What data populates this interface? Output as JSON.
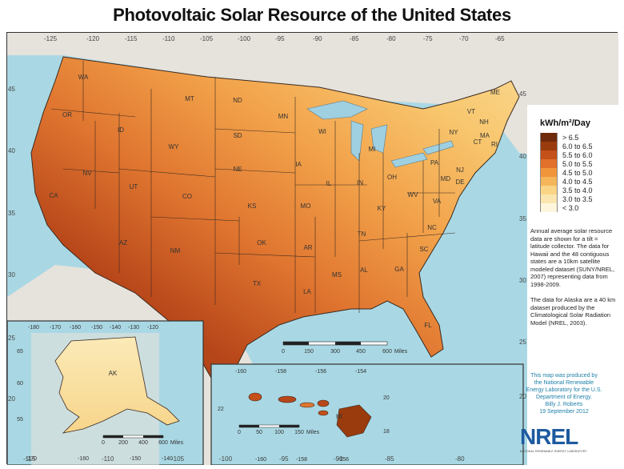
{
  "title": "Photovoltaic Solar Resource of the United States",
  "top_longitude_ticks": [
    "-125",
    "-120",
    "-115",
    "-110",
    "-105",
    "-100",
    "-95",
    "-90",
    "-85",
    "-80",
    "-75",
    "-70",
    "-65"
  ],
  "bottom_longitude_ticks": [
    "-115",
    "-110",
    "-105",
    "-100",
    "-95",
    "-90",
    "-85",
    "-80"
  ],
  "left_latitude_ticks": [
    "45",
    "40",
    "35",
    "30",
    "25",
    "20"
  ],
  "right_latitude_ticks": [
    "45",
    "40",
    "35",
    "30",
    "25",
    "20"
  ],
  "states": [
    "WA",
    "OR",
    "CA",
    "NV",
    "ID",
    "MT",
    "WY",
    "UT",
    "AZ",
    "CO",
    "NM",
    "ND",
    "SD",
    "NE",
    "KS",
    "OK",
    "TX",
    "MN",
    "IA",
    "MO",
    "AR",
    "LA",
    "WI",
    "IL",
    "MS",
    "MI",
    "IN",
    "KY",
    "TN",
    "AL",
    "OH",
    "GA",
    "FL",
    "SC",
    "NC",
    "VA",
    "WV",
    "PA",
    "NY",
    "VT",
    "NH",
    "ME",
    "MA",
    "RI",
    "CT",
    "NJ",
    "DE",
    "MD"
  ],
  "legend": {
    "title": "kWh/m²/Day",
    "items": [
      {
        "label": "> 6.5",
        "color": "#6e2a0a"
      },
      {
        "label": "6.0 to 6.5",
        "color": "#9a3b0d"
      },
      {
        "label": "5.5 to 6.0",
        "color": "#c4501a"
      },
      {
        "label": "5.0 to 5.5",
        "color": "#e0702a"
      },
      {
        "label": "4.5 to 5.0",
        "color": "#f0953a"
      },
      {
        "label": "4.0 to 4.5",
        "color": "#f5b55a"
      },
      {
        "label": "3.5 to 4.0",
        "color": "#f9d585"
      },
      {
        "label": "3.0 to 3.5",
        "color": "#fbe6b0"
      },
      {
        "label": "< 3.0",
        "color": "#fdf6dc"
      }
    ]
  },
  "notes": [
    "Annual average solar resource data are shown for a tilt = latitude collector. The data for Hawaii and the 48 contiguous states are a 10km satellite modeled dataset (SUNY/NREL, 2007) representing data from 1998-2009.",
    "The data for Alaska are a 40 km dataset produced by the Climatological Solar Radiation Model (NREL, 2003)."
  ],
  "credit": [
    "This map was produced by",
    "the National Renewable",
    "Energy Laboratory for the U.S.",
    "Department of Energy.",
    "Billy J. Roberts",
    "19 September 2012"
  ],
  "logo": {
    "name": "NREL",
    "tagline": "NATIONAL RENEWABLE ENERGY LABORATORY"
  },
  "main_scale": {
    "ticks": [
      "0",
      "150",
      "300",
      "450",
      "600"
    ],
    "unit": "Miles"
  },
  "alaska": {
    "label": "AK",
    "top_ticks": [
      "-180",
      "-170",
      "-160",
      "-150",
      "-140",
      "-130",
      "-120"
    ],
    "bottom_ticks": [
      "-170",
      "-160",
      "-150",
      "-140"
    ],
    "left_ticks": [
      "65",
      "60",
      "55"
    ],
    "scale": {
      "ticks": [
        "0",
        "200",
        "400",
        "600"
      ],
      "unit": "Miles"
    }
  },
  "hawaii": {
    "label": "HI",
    "top_ticks": [
      "-160",
      "-158",
      "-156",
      "-154"
    ],
    "bottom_ticks": [
      "-160",
      "-158",
      "-156"
    ],
    "left_ticks": [
      "22"
    ],
    "right_ticks": [
      "20",
      "18"
    ],
    "scale": {
      "ticks": [
        "0",
        "50",
        "100",
        "150"
      ],
      "unit": "Miles"
    }
  },
  "colors": {
    "ocean": "#a9d8e4",
    "land_other": "#e6e2dc",
    "lake": "#9fd0e2",
    "border": "#3a2a20"
  }
}
